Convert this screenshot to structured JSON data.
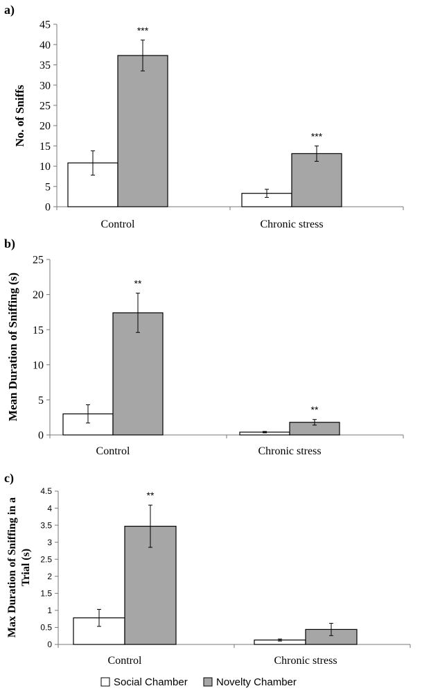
{
  "legend": {
    "social_label": "Social Chamber",
    "novelty_label": "Novelty Chamber",
    "social_color": "#ffffff",
    "novelty_color": "#a6a6a6"
  },
  "chart_data": [
    {
      "type": "bar",
      "panel_label": "a)",
      "ylabel": "No. of Sniffs",
      "categories": [
        "Control",
        "Chronic stress"
      ],
      "ylim": [
        0,
        45
      ],
      "yticks": [
        0,
        5,
        10,
        15,
        20,
        25,
        30,
        35,
        40,
        45
      ],
      "ytick_labels": [
        "0",
        "5",
        "10",
        "15",
        "20",
        "25",
        "30",
        "35",
        "40",
        "45"
      ],
      "series": [
        {
          "name": "Social Chamber",
          "values": [
            10.8,
            3.3
          ],
          "errors": [
            3.0,
            1.0
          ],
          "color": "#ffffff"
        },
        {
          "name": "Novelty Chamber",
          "values": [
            37.3,
            13.1
          ],
          "errors": [
            3.8,
            1.9
          ],
          "color": "#a6a6a6"
        }
      ],
      "significance": [
        "***",
        "***"
      ]
    },
    {
      "type": "bar",
      "panel_label": "b)",
      "ylabel": "Mean Duration of Sniffing (s)",
      "categories": [
        "Control",
        "Chronic stress"
      ],
      "ylim": [
        0,
        25
      ],
      "yticks": [
        0,
        5,
        10,
        15,
        20,
        25
      ],
      "ytick_labels": [
        "0",
        "5",
        "10",
        "15",
        "20",
        "25"
      ],
      "series": [
        {
          "name": "Social Chamber",
          "values": [
            3.0,
            0.4
          ],
          "errors": [
            1.3,
            0.1
          ],
          "color": "#ffffff"
        },
        {
          "name": "Novelty Chamber",
          "values": [
            17.4,
            1.8
          ],
          "errors": [
            2.8,
            0.4
          ],
          "color": "#a6a6a6"
        }
      ],
      "significance": [
        "**",
        "**"
      ]
    },
    {
      "type": "bar",
      "panel_label": "c)",
      "ylabel": "Max Duration of Sniffing in a Trial (s)",
      "ylabel_lines": [
        "Max Duration of Sniffing in a",
        "Trial (s)"
      ],
      "categories": [
        "Control",
        "Chronic stress"
      ],
      "ylim": [
        0,
        4.5
      ],
      "yticks": [
        0,
        0.5,
        1,
        1.5,
        2,
        2.5,
        3,
        3.5,
        4,
        4.5
      ],
      "ytick_labels": [
        "0",
        "0.5",
        "1",
        "1.5",
        "2",
        "2.5",
        "3",
        "3.5",
        "4",
        "4.5"
      ],
      "series": [
        {
          "name": "Social Chamber",
          "values": [
            0.78,
            0.13
          ],
          "errors": [
            0.25,
            0.03
          ],
          "color": "#ffffff"
        },
        {
          "name": "Novelty Chamber",
          "values": [
            3.47,
            0.44
          ],
          "errors": [
            0.62,
            0.18
          ],
          "color": "#a6a6a6"
        }
      ],
      "significance": [
        "**",
        ""
      ]
    }
  ]
}
